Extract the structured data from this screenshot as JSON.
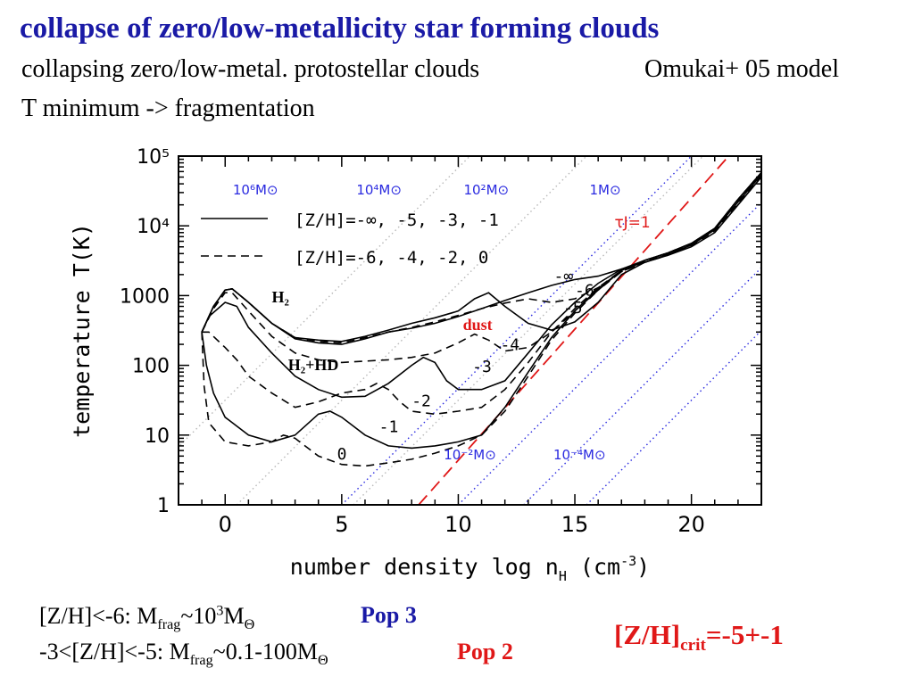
{
  "header": {
    "title": "collapse of zero/low-metallicity star forming clouds",
    "line1": "collapsing zero/low-metal. protostellar clouds",
    "line1_right": "Omukai+ 05 model",
    "line2": "T minimum -> fragmentation"
  },
  "chart_data": {
    "type": "line",
    "xlabel": "number density log n",
    "xlabel_sub": "H",
    "xlabel_unit": " (cm",
    "xlabel_unit_sup": "-3",
    "xlabel_unit_end": ")",
    "ylabel": "temperature T(K)",
    "x_scale": "linear",
    "y_scale": "log",
    "xlim": [
      -2,
      23
    ],
    "ylim": [
      1,
      100000
    ],
    "x_ticks": [
      0,
      5,
      10,
      15,
      20
    ],
    "y_ticks": [
      {
        "value": 1,
        "label": "1"
      },
      {
        "value": 10,
        "label": "10"
      },
      {
        "value": 100,
        "label": "100"
      },
      {
        "value": 1000,
        "label": "1000"
      },
      {
        "value": 10000,
        "label": "10⁴"
      },
      {
        "value": 100000,
        "label": "10⁵"
      }
    ],
    "legend": [
      {
        "style": "solid",
        "label": "[Z/H]=-∞,  -5,  -3,  -1"
      },
      {
        "style": "dashed",
        "label": "[Z/H]=-6,  -4,  -2,  0"
      }
    ],
    "jeans_mass_labels": [
      {
        "text": "10⁶M⊙",
        "x": 1.3,
        "y": 28000
      },
      {
        "text": "10⁴M⊙",
        "x": 6.6,
        "y": 28000
      },
      {
        "text": "10²M⊙",
        "x": 11.2,
        "y": 28000
      },
      {
        "text": "1M⊙",
        "x": 16.3,
        "y": 28000
      },
      {
        "text": "10⁻²M⊙",
        "x": 10.5,
        "y": 4.5
      },
      {
        "text": "10⁻⁴M⊙",
        "x": 15.2,
        "y": 4.5
      }
    ],
    "tau_label": "τJ=1",
    "annotations": [
      {
        "text": "H₂",
        "x": 2.0,
        "y": 800,
        "color": "#000000"
      },
      {
        "text": "H₂+HD",
        "x": 2.7,
        "y": 85,
        "color": "#000000"
      },
      {
        "text": "dust",
        "x": 10.2,
        "y": 320,
        "color": "#e01818"
      }
    ],
    "curve_labels": [
      {
        "text": "-∞",
        "x": 14.1,
        "y": 1600
      },
      {
        "text": "-6",
        "x": 15.0,
        "y": 1000
      },
      {
        "text": "-5",
        "x": 14.5,
        "y": 560
      },
      {
        "text": "-4",
        "x": 11.8,
        "y": 165
      },
      {
        "text": "-3",
        "x": 10.6,
        "y": 80
      },
      {
        "text": "-2",
        "x": 8.0,
        "y": 26
      },
      {
        "text": "-1",
        "x": 6.6,
        "y": 11
      },
      {
        "text": "0",
        "x": 4.8,
        "y": 4.5
      }
    ],
    "series": [
      {
        "name": "-∞",
        "style": "solid",
        "points": [
          [
            -1,
            300
          ],
          [
            -0.5,
            700
          ],
          [
            0,
            1200
          ],
          [
            0.3,
            1250
          ],
          [
            1,
            800
          ],
          [
            2,
            400
          ],
          [
            3,
            240
          ],
          [
            4,
            210
          ],
          [
            5,
            200
          ],
          [
            6,
            240
          ],
          [
            7,
            300
          ],
          [
            8,
            340
          ],
          [
            9,
            400
          ],
          [
            10,
            500
          ],
          [
            11,
            650
          ],
          [
            12,
            850
          ],
          [
            13,
            1100
          ],
          [
            14,
            1400
          ],
          [
            15,
            1700
          ],
          [
            16,
            1900
          ],
          [
            17,
            2400
          ],
          [
            18,
            3000
          ],
          [
            19,
            3800
          ],
          [
            20,
            5000
          ],
          [
            21,
            8000
          ],
          [
            22,
            20000
          ],
          [
            23,
            50000
          ]
        ]
      },
      {
        "name": "-6",
        "style": "dashed",
        "points": [
          [
            -1,
            300
          ],
          [
            -0.5,
            700
          ],
          [
            0,
            1200
          ],
          [
            0.3,
            1250
          ],
          [
            1,
            800
          ],
          [
            2,
            400
          ],
          [
            3,
            250
          ],
          [
            4,
            220
          ],
          [
            5,
            210
          ],
          [
            6,
            250
          ],
          [
            7,
            300
          ],
          [
            8,
            350
          ],
          [
            9,
            420
          ],
          [
            10,
            520
          ],
          [
            11,
            650
          ],
          [
            12,
            780
          ],
          [
            13,
            900
          ],
          [
            14,
            800
          ],
          [
            15,
            900
          ],
          [
            16,
            1300
          ],
          [
            17,
            2200
          ],
          [
            18,
            3000
          ],
          [
            19,
            3800
          ],
          [
            20,
            5200
          ],
          [
            21,
            8500
          ],
          [
            22,
            21000
          ],
          [
            23,
            52000
          ]
        ]
      },
      {
        "name": "-5",
        "style": "solid",
        "points": [
          [
            -1,
            300
          ],
          [
            -0.5,
            700
          ],
          [
            0,
            1200
          ],
          [
            0.3,
            1250
          ],
          [
            1,
            800
          ],
          [
            2,
            400
          ],
          [
            3,
            250
          ],
          [
            4,
            230
          ],
          [
            5,
            220
          ],
          [
            6,
            260
          ],
          [
            7,
            320
          ],
          [
            8,
            400
          ],
          [
            9,
            480
          ],
          [
            10,
            600
          ],
          [
            10.7,
            900
          ],
          [
            11.3,
            1100
          ],
          [
            12,
            700
          ],
          [
            13,
            400
          ],
          [
            14,
            320
          ],
          [
            15,
            420
          ],
          [
            16,
            800
          ],
          [
            17,
            2000
          ],
          [
            18,
            3000
          ],
          [
            19,
            3900
          ],
          [
            20,
            5300
          ],
          [
            21,
            8800
          ],
          [
            22,
            22000
          ],
          [
            23,
            54000
          ]
        ]
      },
      {
        "name": "-4",
        "style": "dashed",
        "points": [
          [
            -1,
            300
          ],
          [
            -0.5,
            650
          ],
          [
            0,
            1100
          ],
          [
            0.3,
            1100
          ],
          [
            1,
            600
          ],
          [
            2,
            260
          ],
          [
            3,
            150
          ],
          [
            4,
            120
          ],
          [
            5,
            110
          ],
          [
            6,
            115
          ],
          [
            7,
            120
          ],
          [
            8,
            130
          ],
          [
            9,
            150
          ],
          [
            10,
            210
          ],
          [
            10.7,
            280
          ],
          [
            11.3,
            230
          ],
          [
            12,
            160
          ],
          [
            13,
            180
          ],
          [
            14,
            300
          ],
          [
            15,
            600
          ],
          [
            16,
            1200
          ],
          [
            17,
            2200
          ],
          [
            18,
            3100
          ],
          [
            19,
            4000
          ],
          [
            20,
            5500
          ],
          [
            21,
            9000
          ],
          [
            22,
            23000
          ],
          [
            23,
            56000
          ]
        ]
      },
      {
        "name": "-3",
        "style": "solid",
        "points": [
          [
            -1,
            300
          ],
          [
            -0.7,
            500
          ],
          [
            0,
            800
          ],
          [
            0.5,
            700
          ],
          [
            1,
            350
          ],
          [
            2,
            150
          ],
          [
            3,
            70
          ],
          [
            4,
            45
          ],
          [
            5,
            35
          ],
          [
            6,
            36
          ],
          [
            7,
            55
          ],
          [
            8,
            100
          ],
          [
            8.5,
            130
          ],
          [
            9,
            110
          ],
          [
            9.5,
            60
          ],
          [
            10,
            45
          ],
          [
            11,
            45
          ],
          [
            12,
            60
          ],
          [
            13,
            150
          ],
          [
            14,
            380
          ],
          [
            15,
            800
          ],
          [
            16,
            1500
          ],
          [
            17,
            2400
          ],
          [
            18,
            3200
          ],
          [
            19,
            4100
          ],
          [
            20,
            5600
          ],
          [
            21,
            9200
          ],
          [
            22,
            24000
          ],
          [
            23,
            58000
          ]
        ]
      },
      {
        "name": "-2",
        "style": "dashed",
        "points": [
          [
            -1,
            300
          ],
          [
            -0.7,
            300
          ],
          [
            0,
            180
          ],
          [
            0.5,
            120
          ],
          [
            1,
            70
          ],
          [
            2,
            40
          ],
          [
            3,
            25
          ],
          [
            4,
            30
          ],
          [
            5,
            40
          ],
          [
            6,
            45
          ],
          [
            6.5,
            55
          ],
          [
            7,
            45
          ],
          [
            7.5,
            30
          ],
          [
            8,
            22
          ],
          [
            9,
            20
          ],
          [
            10,
            22
          ],
          [
            11,
            25
          ],
          [
            12,
            45
          ],
          [
            13,
            110
          ],
          [
            14,
            300
          ],
          [
            15,
            650
          ],
          [
            16,
            1300
          ],
          [
            17,
            2300
          ],
          [
            18,
            3200
          ],
          [
            19,
            4100
          ],
          [
            20,
            5600
          ],
          [
            21,
            9200
          ],
          [
            22,
            24000
          ],
          [
            23,
            58000
          ]
        ]
      },
      {
        "name": "-1",
        "style": "solid",
        "points": [
          [
            -1,
            300
          ],
          [
            -0.8,
            100
          ],
          [
            -0.5,
            40
          ],
          [
            0,
            18
          ],
          [
            1,
            10
          ],
          [
            2,
            8
          ],
          [
            3,
            10
          ],
          [
            4,
            20
          ],
          [
            4.5,
            22
          ],
          [
            5,
            18
          ],
          [
            6,
            10
          ],
          [
            7,
            7
          ],
          [
            8,
            6.5
          ],
          [
            9,
            7
          ],
          [
            10,
            8
          ],
          [
            11,
            10
          ],
          [
            12,
            25
          ],
          [
            13,
            80
          ],
          [
            14,
            250
          ],
          [
            15,
            600
          ],
          [
            16,
            1250
          ],
          [
            17,
            2300
          ],
          [
            18,
            3200
          ],
          [
            19,
            4100
          ],
          [
            20,
            5600
          ],
          [
            21,
            9200
          ],
          [
            22,
            24000
          ],
          [
            23,
            58000
          ]
        ]
      },
      {
        "name": "0",
        "style": "dashed",
        "points": [
          [
            -1,
            300
          ],
          [
            -0.9,
            50
          ],
          [
            -0.7,
            15
          ],
          [
            0,
            8
          ],
          [
            1,
            7
          ],
          [
            2,
            8
          ],
          [
            2.5,
            10
          ],
          [
            3,
            9
          ],
          [
            4,
            5
          ],
          [
            5,
            3.8
          ],
          [
            6,
            3.6
          ],
          [
            7,
            4
          ],
          [
            8,
            4.5
          ],
          [
            9,
            5.5
          ],
          [
            10,
            7
          ],
          [
            11,
            10
          ],
          [
            12,
            22
          ],
          [
            13,
            70
          ],
          [
            14,
            230
          ],
          [
            15,
            560
          ],
          [
            16,
            1200
          ],
          [
            17,
            2300
          ],
          [
            18,
            3200
          ],
          [
            19,
            4100
          ],
          [
            20,
            5600
          ],
          [
            21,
            9200
          ],
          [
            22,
            24000
          ],
          [
            23,
            58000
          ]
        ]
      }
    ]
  },
  "footer": {
    "line1_pre": "[Z/H]<-6: M",
    "line1_sub": "frag",
    "line1_mid": "~10",
    "line1_sup": "3",
    "line1_end": "M",
    "line1_sun": "Θ",
    "pop3": "Pop 3",
    "line2_pre": "-3<[Z/H]<-5: M",
    "line2_sub": "frag",
    "line2_mid": "~0.1-100M",
    "line2_sun": "Θ",
    "pop2": "Pop 2",
    "crit_pre": "[Z/H]",
    "crit_sub": "crit",
    "crit_end": "=-5+-1"
  }
}
